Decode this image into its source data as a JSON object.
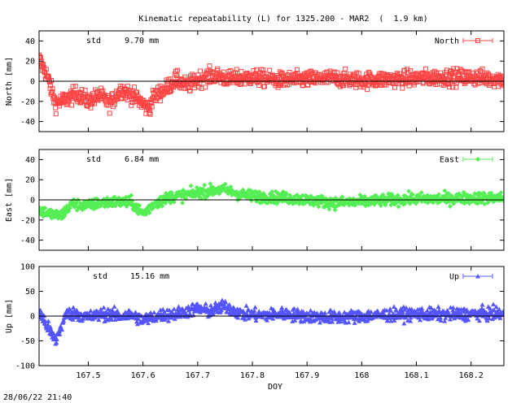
{
  "title": "Kinematic repeatability (L) for 1325.200 - MAR2  (  1.9 km)",
  "footer": "28/06/22 21:40",
  "x_label": "DOY",
  "chart_data": [
    {
      "type": "scatter",
      "name": "north",
      "ylabel": "North [mm]",
      "ylim": [
        -50,
        50
      ],
      "yticks": [
        -40,
        -20,
        0,
        20,
        40
      ],
      "xlim": [
        167.41,
        168.26
      ],
      "legend": "North",
      "legend_position": "top-right",
      "std_label": "std",
      "std_value": "9.70 mm",
      "color": "#ff4444",
      "marker": "square",
      "std_mm": 9.7,
      "trend": [
        {
          "x": 167.41,
          "y": 22
        },
        {
          "x": 167.425,
          "y": 5
        },
        {
          "x": 167.44,
          "y": -22
        },
        {
          "x": 167.46,
          "y": -18
        },
        {
          "x": 167.48,
          "y": -12
        },
        {
          "x": 167.5,
          "y": -20
        },
        {
          "x": 167.52,
          "y": -14
        },
        {
          "x": 167.54,
          "y": -22
        },
        {
          "x": 167.56,
          "y": -8
        },
        {
          "x": 167.58,
          "y": -14
        },
        {
          "x": 167.6,
          "y": -22
        },
        {
          "x": 167.61,
          "y": -28
        },
        {
          "x": 167.62,
          "y": -15
        },
        {
          "x": 167.64,
          "y": -8
        },
        {
          "x": 167.66,
          "y": 2
        },
        {
          "x": 167.68,
          "y": -5
        },
        {
          "x": 167.7,
          "y": 2
        },
        {
          "x": 167.73,
          "y": 6
        },
        {
          "x": 167.76,
          "y": 2
        },
        {
          "x": 167.8,
          "y": 4
        },
        {
          "x": 167.85,
          "y": 1
        },
        {
          "x": 167.9,
          "y": 2
        },
        {
          "x": 167.95,
          "y": 3
        },
        {
          "x": 168.0,
          "y": 1
        },
        {
          "x": 168.05,
          "y": 2
        },
        {
          "x": 168.1,
          "y": 3
        },
        {
          "x": 168.15,
          "y": 4
        },
        {
          "x": 168.2,
          "y": 4
        },
        {
          "x": 168.26,
          "y": 2
        }
      ]
    },
    {
      "type": "scatter",
      "name": "east",
      "ylabel": "East [mm]",
      "ylim": [
        -50,
        50
      ],
      "yticks": [
        -40,
        -20,
        0,
        20,
        40
      ],
      "xlim": [
        167.41,
        168.26
      ],
      "legend": "East",
      "legend_position": "top-right",
      "std_label": "std",
      "std_value": "6.84 mm",
      "color": "#55ee55",
      "marker": "diamond",
      "std_mm": 6.84,
      "trend": [
        {
          "x": 167.41,
          "y": -10
        },
        {
          "x": 167.43,
          "y": -14
        },
        {
          "x": 167.45,
          "y": -16
        },
        {
          "x": 167.47,
          "y": -4
        },
        {
          "x": 167.5,
          "y": -6
        },
        {
          "x": 167.52,
          "y": -3
        },
        {
          "x": 167.55,
          "y": -2
        },
        {
          "x": 167.58,
          "y": -3
        },
        {
          "x": 167.6,
          "y": -14
        },
        {
          "x": 167.62,
          "y": -4
        },
        {
          "x": 167.65,
          "y": 3
        },
        {
          "x": 167.68,
          "y": 5
        },
        {
          "x": 167.72,
          "y": 9
        },
        {
          "x": 167.75,
          "y": 10
        },
        {
          "x": 167.78,
          "y": 5
        },
        {
          "x": 167.82,
          "y": 3
        },
        {
          "x": 167.86,
          "y": 2
        },
        {
          "x": 167.9,
          "y": 0
        },
        {
          "x": 167.95,
          "y": -3
        },
        {
          "x": 168.0,
          "y": -2
        },
        {
          "x": 168.05,
          "y": 0
        },
        {
          "x": 168.1,
          "y": 1
        },
        {
          "x": 168.15,
          "y": 1
        },
        {
          "x": 168.2,
          "y": 2
        },
        {
          "x": 168.26,
          "y": 2
        }
      ]
    },
    {
      "type": "scatter",
      "name": "up",
      "ylabel": "Up [mm]",
      "ylim": [
        -100,
        100
      ],
      "yticks": [
        -100,
        -50,
        0,
        50,
        100
      ],
      "xlim": [
        167.41,
        168.26
      ],
      "xticks": [
        167.5,
        167.6,
        167.7,
        167.8,
        167.9,
        168,
        168.1,
        168.2
      ],
      "legend": "Up",
      "legend_position": "top-right",
      "std_label": "std",
      "std_value": "15.16 mm",
      "color": "#5555ff",
      "marker": "triangle",
      "std_mm": 15.16,
      "trend": [
        {
          "x": 167.41,
          "y": 10
        },
        {
          "x": 167.43,
          "y": -30
        },
        {
          "x": 167.44,
          "y": -50
        },
        {
          "x": 167.46,
          "y": 5
        },
        {
          "x": 167.48,
          "y": 5
        },
        {
          "x": 167.5,
          "y": -2
        },
        {
          "x": 167.53,
          "y": 5
        },
        {
          "x": 167.56,
          "y": 0
        },
        {
          "x": 167.58,
          "y": 3
        },
        {
          "x": 167.6,
          "y": -8
        },
        {
          "x": 167.63,
          "y": 2
        },
        {
          "x": 167.66,
          "y": 5
        },
        {
          "x": 167.7,
          "y": 15
        },
        {
          "x": 167.72,
          "y": 10
        },
        {
          "x": 167.75,
          "y": 20
        },
        {
          "x": 167.78,
          "y": 5
        },
        {
          "x": 167.82,
          "y": 2
        },
        {
          "x": 167.86,
          "y": 5
        },
        {
          "x": 167.9,
          "y": 0
        },
        {
          "x": 167.95,
          "y": -2
        },
        {
          "x": 168.0,
          "y": 0
        },
        {
          "x": 168.05,
          "y": 3
        },
        {
          "x": 168.1,
          "y": 5
        },
        {
          "x": 168.15,
          "y": 3
        },
        {
          "x": 168.2,
          "y": 5
        },
        {
          "x": 168.26,
          "y": 5
        }
      ]
    }
  ]
}
